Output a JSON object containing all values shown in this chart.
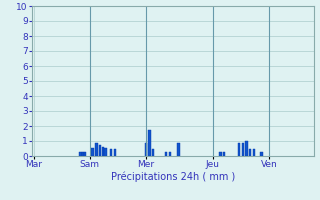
{
  "xlabel": "Précipitations 24h ( mm )",
  "background_color": "#dff2f2",
  "grid_color": "#aacccc",
  "bar_color": "#1155cc",
  "bar_edge_color": "#0033aa",
  "ylim": [
    0,
    10
  ],
  "yticks": [
    0,
    1,
    2,
    3,
    4,
    5,
    6,
    7,
    8,
    9,
    10
  ],
  "day_labels": [
    "Mar",
    "Sam",
    "Mer",
    "Jeu",
    "Ven"
  ],
  "day_tick_positions": [
    0,
    60,
    120,
    192,
    252
  ],
  "vline_positions": [
    60,
    120,
    192,
    252
  ],
  "total_slots": 300,
  "bar_data": [
    [
      50,
      0.25
    ],
    [
      53,
      0.25
    ],
    [
      55,
      0.25
    ],
    [
      63,
      0.55
    ],
    [
      67,
      0.9
    ],
    [
      71,
      0.75
    ],
    [
      74,
      0.6
    ],
    [
      77,
      0.55
    ],
    [
      83,
      0.5
    ],
    [
      87,
      0.5
    ],
    [
      120,
      0.9
    ],
    [
      124,
      1.75
    ],
    [
      128,
      0.5
    ],
    [
      142,
      0.3
    ],
    [
      146,
      0.3
    ],
    [
      155,
      0.9
    ],
    [
      200,
      0.25
    ],
    [
      204,
      0.25
    ],
    [
      220,
      0.9
    ],
    [
      224,
      0.9
    ],
    [
      228,
      1.0
    ],
    [
      232,
      0.5
    ],
    [
      236,
      0.5
    ],
    [
      244,
      0.25
    ]
  ],
  "xlim": [
    -2,
    300
  ],
  "tick_fontsize": 6.5,
  "label_fontsize": 7,
  "spine_color": "#88aaaa",
  "tick_color": "#3333bb"
}
